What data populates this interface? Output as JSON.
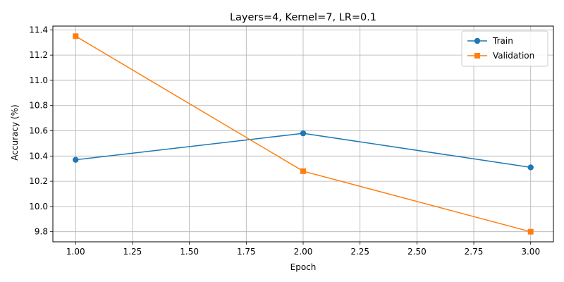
{
  "chart_data": {
    "type": "line",
    "title": "Layers=4, Kernel=7, LR=0.1",
    "xlabel": "Epoch",
    "ylabel": "Accuracy (%)",
    "x": [
      1.0,
      2.0,
      3.0
    ],
    "xlim": [
      0.9,
      3.1
    ],
    "ylim": [
      9.72,
      11.43
    ],
    "xticks": [
      1.0,
      1.25,
      1.5,
      1.75,
      2.0,
      2.25,
      2.5,
      2.75,
      3.0
    ],
    "xtick_labels": [
      "1.00",
      "1.25",
      "1.50",
      "1.75",
      "2.00",
      "2.25",
      "2.50",
      "2.75",
      "3.00"
    ],
    "yticks": [
      9.8,
      10.0,
      10.2,
      10.4,
      10.6,
      10.8,
      11.0,
      11.2,
      11.4
    ],
    "ytick_labels": [
      "9.8",
      "10.0",
      "10.2",
      "10.4",
      "10.6",
      "10.8",
      "11.0",
      "11.2",
      "11.4"
    ],
    "grid": true,
    "legend_position": "top-right",
    "series": [
      {
        "name": "Train",
        "values": [
          10.37,
          10.58,
          10.31
        ],
        "color": "#1f77b4",
        "marker": "circle"
      },
      {
        "name": "Validation",
        "values": [
          11.35,
          10.28,
          9.8
        ],
        "color": "#ff7f0e",
        "marker": "square"
      }
    ]
  }
}
